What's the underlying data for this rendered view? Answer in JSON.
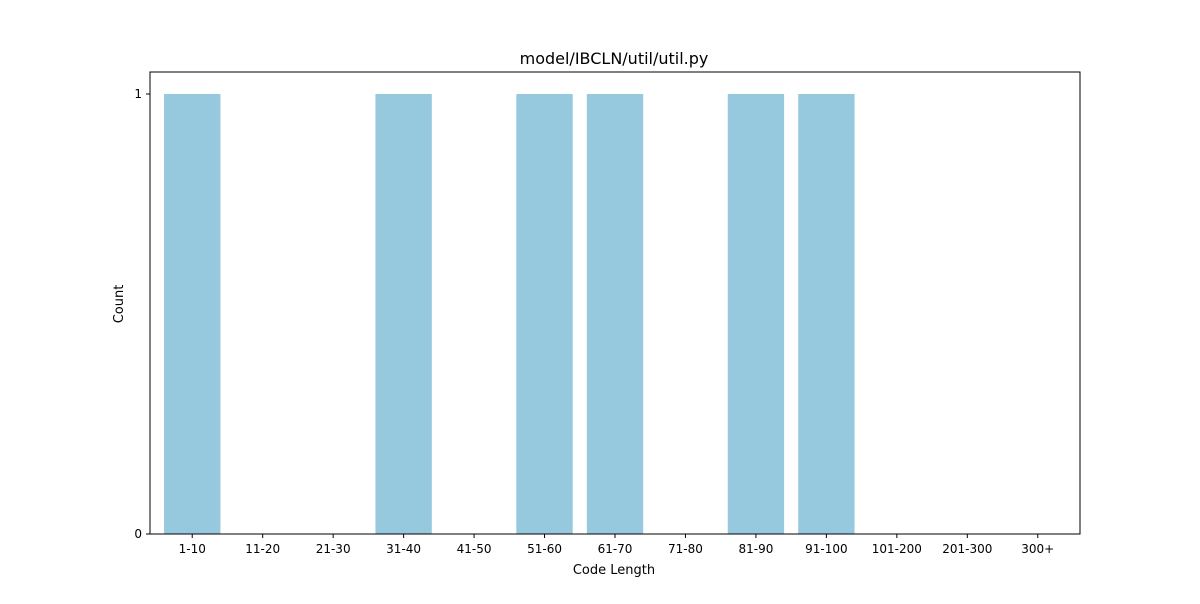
{
  "chart_data": {
    "type": "bar",
    "title": "model/IBCLN/util/util.py",
    "xlabel": "Code Length",
    "ylabel": "Count",
    "categories": [
      "1-10",
      "11-20",
      "21-30",
      "31-40",
      "41-50",
      "51-60",
      "61-70",
      "71-80",
      "81-90",
      "91-100",
      "101-200",
      "201-300",
      "300+"
    ],
    "values": [
      1,
      0,
      0,
      1,
      0,
      1,
      1,
      0,
      1,
      1,
      0,
      0,
      0
    ],
    "ylim": [
      0,
      1
    ],
    "yticks": [
      0,
      1
    ],
    "bar_color": "#96c9de",
    "grid": false,
    "legend": "none"
  }
}
